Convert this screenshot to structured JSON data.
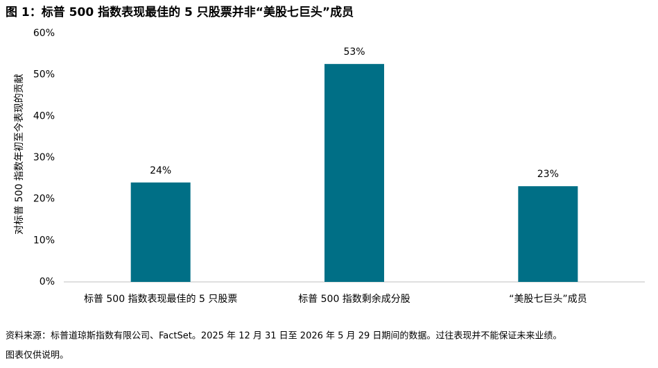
{
  "chart_data": {
    "type": "bar",
    "title": "图 1：标普 500 指数表现最佳的 5 只股票并非“美股七巨头”成员",
    "y_label": "对标普 500 指数年初至今表现的贡献",
    "categories": [
      "标普 500 指数表现最佳的 5 只股票",
      "标普 500 指数剩余成分股",
      "“美股七巨头”成员"
    ],
    "values": [
      24,
      52.6,
      23.1
    ],
    "value_labels": [
      "24%",
      "53%",
      "23%"
    ],
    "color": "#006f86",
    "ylim": [
      0,
      60
    ],
    "yticks": [
      {
        "value": 0,
        "label": "0%"
      },
      {
        "value": 10,
        "label": "10%"
      },
      {
        "value": 20,
        "label": "20%"
      },
      {
        "value": 30,
        "label": "30%"
      },
      {
        "value": 40,
        "label": "40%"
      },
      {
        "value": 50,
        "label": "50%"
      },
      {
        "value": 60,
        "label": "60%"
      }
    ],
    "grid": false,
    "source": "资料来源：标普道琼斯指数有限公司、FactSet。2025 年 12 月 31 日至 2026 年 5 月 29 日期间的数据。过往表现并不能保证未来业绩。",
    "note": "图表仅供说明。"
  }
}
